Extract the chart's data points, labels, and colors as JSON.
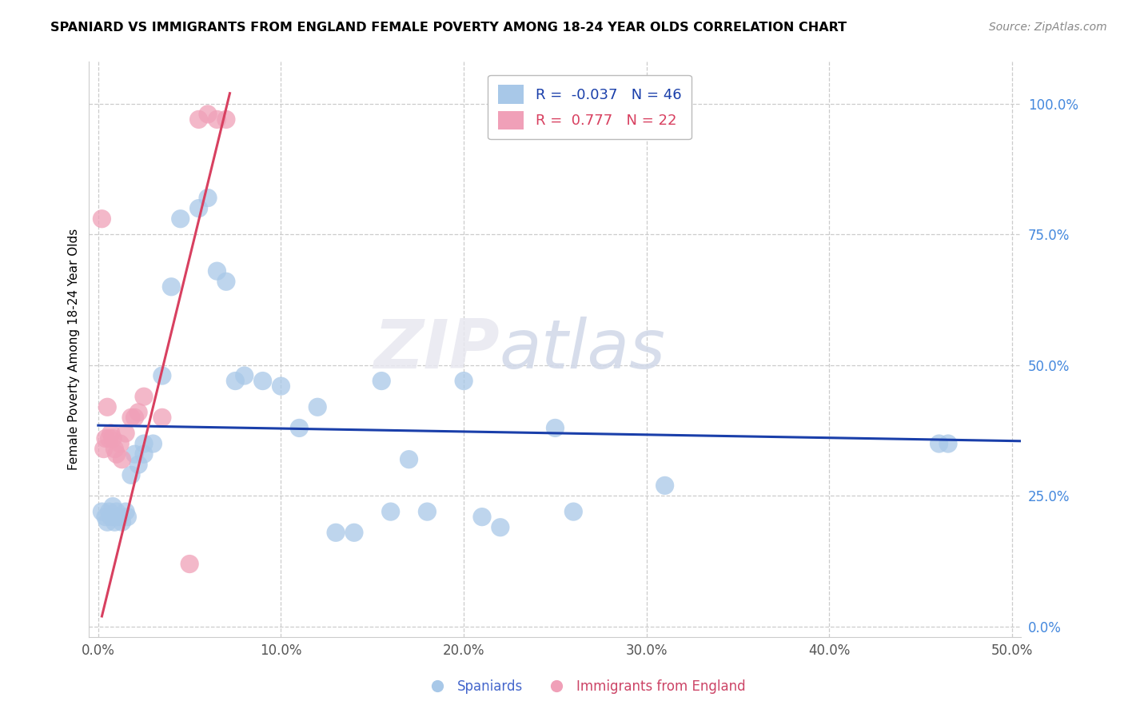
{
  "title": "SPANIARD VS IMMIGRANTS FROM ENGLAND FEMALE POVERTY AMONG 18-24 YEAR OLDS CORRELATION CHART",
  "source": "Source: ZipAtlas.com",
  "ylabel": "Female Poverty Among 18-24 Year Olds",
  "xlim": [
    -0.005,
    0.505
  ],
  "ylim": [
    -0.02,
    1.08
  ],
  "x_ticks": [
    0.0,
    0.1,
    0.2,
    0.3,
    0.4,
    0.5
  ],
  "x_tick_labels": [
    "0.0%",
    "10.0%",
    "20.0%",
    "30.0%",
    "40.0%",
    "50.0%"
  ],
  "y_ticks": [
    0.0,
    0.25,
    0.5,
    0.75,
    1.0
  ],
  "y_tick_labels": [
    "0.0%",
    "25.0%",
    "50.0%",
    "75.0%",
    "100.0%"
  ],
  "blue_R": -0.037,
  "blue_N": 46,
  "pink_R": 0.777,
  "pink_N": 22,
  "blue_color": "#a8c8e8",
  "pink_color": "#f0a0b8",
  "blue_line_color": "#1a3faa",
  "pink_line_color": "#d84060",
  "watermark_zip": "ZIP",
  "watermark_atlas": "atlas",
  "legend_labels": [
    "Spaniards",
    "Immigrants from England"
  ],
  "blue_scatter_x": [
    0.002,
    0.004,
    0.005,
    0.006,
    0.007,
    0.008,
    0.009,
    0.01,
    0.01,
    0.012,
    0.013,
    0.015,
    0.016,
    0.018,
    0.02,
    0.022,
    0.025,
    0.025,
    0.03,
    0.035,
    0.04,
    0.045,
    0.055,
    0.06,
    0.065,
    0.07,
    0.075,
    0.08,
    0.09,
    0.1,
    0.11,
    0.12,
    0.13,
    0.14,
    0.155,
    0.16,
    0.17,
    0.18,
    0.2,
    0.21,
    0.22,
    0.25,
    0.26,
    0.31,
    0.46,
    0.465
  ],
  "blue_scatter_y": [
    0.22,
    0.21,
    0.2,
    0.22,
    0.21,
    0.23,
    0.2,
    0.21,
    0.22,
    0.21,
    0.2,
    0.22,
    0.21,
    0.29,
    0.33,
    0.31,
    0.35,
    0.33,
    0.35,
    0.48,
    0.65,
    0.78,
    0.8,
    0.82,
    0.68,
    0.66,
    0.47,
    0.48,
    0.47,
    0.46,
    0.38,
    0.42,
    0.18,
    0.18,
    0.47,
    0.22,
    0.32,
    0.22,
    0.47,
    0.21,
    0.19,
    0.38,
    0.22,
    0.27,
    0.35,
    0.35
  ],
  "pink_scatter_x": [
    0.002,
    0.003,
    0.004,
    0.005,
    0.006,
    0.007,
    0.008,
    0.009,
    0.01,
    0.012,
    0.013,
    0.015,
    0.018,
    0.02,
    0.022,
    0.025,
    0.035,
    0.05,
    0.055,
    0.06,
    0.065,
    0.07
  ],
  "pink_scatter_y": [
    0.78,
    0.34,
    0.36,
    0.42,
    0.36,
    0.37,
    0.36,
    0.34,
    0.33,
    0.35,
    0.32,
    0.37,
    0.4,
    0.4,
    0.41,
    0.44,
    0.4,
    0.12,
    0.97,
    0.98,
    0.97,
    0.97
  ],
  "blue_trend_x": [
    0.0,
    0.505
  ],
  "blue_trend_y": [
    0.385,
    0.355
  ],
  "pink_trend_x": [
    0.002,
    0.072
  ],
  "pink_trend_y": [
    0.02,
    1.02
  ]
}
